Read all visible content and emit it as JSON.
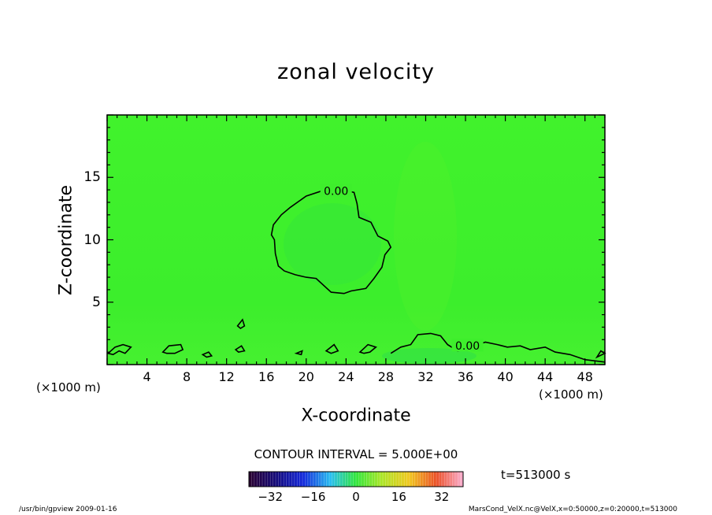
{
  "chart_data": {
    "type": "contour",
    "title": "zonal velocity",
    "xlabel": "X-coordinate",
    "ylabel": "Z-coordinate",
    "x_unit_label": "(×1000 m)",
    "xlim": [
      0,
      50
    ],
    "ylim": [
      0,
      20
    ],
    "x_ticks": [
      4,
      8,
      12,
      16,
      20,
      24,
      28,
      32,
      36,
      40,
      44,
      48
    ],
    "y_ticks": [
      5,
      10,
      15
    ],
    "contour_label": "0.00",
    "contour_interval_text": "CONTOUR INTERVAL = 5.000E+00",
    "colorbar": {
      "min": -40,
      "max": 40,
      "ticks": [
        -32,
        -16,
        0,
        16,
        32
      ],
      "tick_labels": [
        "−32",
        "−16",
        "0",
        "16",
        "32"
      ]
    },
    "time_label": "t=513000 s",
    "field_color": "#3df02a",
    "contours": [
      {
        "name": "zero-contour-bubble",
        "points": [
          [
            18.4,
            12.6
          ],
          [
            20.0,
            13.5
          ],
          [
            21.5,
            13.9
          ],
          [
            23.5,
            14.0
          ],
          [
            24.8,
            13.8
          ],
          [
            25.1,
            12.9
          ],
          [
            25.3,
            11.8
          ],
          [
            26.5,
            11.4
          ],
          [
            27.2,
            10.3
          ],
          [
            28.2,
            9.9
          ],
          [
            28.5,
            9.4
          ],
          [
            27.9,
            8.8
          ],
          [
            27.6,
            7.8
          ],
          [
            26.8,
            6.9
          ],
          [
            26.0,
            6.1
          ],
          [
            24.5,
            5.9
          ],
          [
            23.8,
            5.7
          ],
          [
            22.5,
            5.8
          ],
          [
            21.0,
            6.9
          ],
          [
            20.0,
            7.0
          ],
          [
            18.9,
            7.2
          ],
          [
            17.8,
            7.5
          ],
          [
            17.2,
            7.9
          ],
          [
            16.9,
            8.9
          ],
          [
            16.8,
            10.0
          ],
          [
            16.5,
            10.4
          ],
          [
            16.7,
            11.2
          ],
          [
            17.5,
            12.0
          ]
        ]
      },
      {
        "name": "zero-contour-near-surface",
        "points": [
          [
            28.5,
            0.9
          ],
          [
            29.5,
            1.4
          ],
          [
            30.5,
            1.6
          ],
          [
            31.2,
            2.4
          ],
          [
            32.5,
            2.5
          ],
          [
            33.5,
            2.3
          ],
          [
            34.2,
            1.6
          ],
          [
            35.2,
            1.1
          ],
          [
            36.2,
            1.2
          ],
          [
            37.2,
            1.6
          ],
          [
            38.0,
            1.8
          ],
          [
            39.2,
            1.6
          ],
          [
            40.2,
            1.4
          ],
          [
            41.5,
            1.5
          ],
          [
            42.5,
            1.2
          ],
          [
            44.0,
            1.4
          ],
          [
            45.0,
            1.0
          ],
          [
            46.5,
            0.8
          ],
          [
            48.0,
            0.4
          ],
          [
            50.0,
            0.2
          ]
        ]
      },
      {
        "name": "small-contour-1",
        "points": [
          [
            0.1,
            0.9
          ],
          [
            0.8,
            1.4
          ],
          [
            1.6,
            1.6
          ],
          [
            2.4,
            1.4
          ],
          [
            1.8,
            0.9
          ],
          [
            1.2,
            1.1
          ],
          [
            0.6,
            0.8
          ]
        ]
      },
      {
        "name": "small-contour-2",
        "points": [
          [
            5.6,
            1.0
          ],
          [
            6.2,
            1.5
          ],
          [
            7.4,
            1.6
          ],
          [
            7.6,
            1.2
          ],
          [
            6.8,
            0.9
          ],
          [
            6.0,
            0.9
          ]
        ]
      },
      {
        "name": "small-contour-3",
        "points": [
          [
            9.6,
            0.8
          ],
          [
            10.2,
            1.0
          ],
          [
            10.5,
            0.7
          ],
          [
            10.0,
            0.6
          ]
        ]
      },
      {
        "name": "small-contour-4",
        "points": [
          [
            12.9,
            1.2
          ],
          [
            13.5,
            1.5
          ],
          [
            13.8,
            1.1
          ],
          [
            13.2,
            1.0
          ]
        ]
      },
      {
        "name": "small-contour-5",
        "points": [
          [
            13.1,
            3.1
          ],
          [
            13.6,
            3.6
          ],
          [
            13.8,
            3.1
          ],
          [
            13.4,
            2.9
          ]
        ]
      },
      {
        "name": "small-contour-6",
        "points": [
          [
            19.0,
            0.9
          ],
          [
            19.6,
            1.1
          ],
          [
            19.5,
            0.8
          ]
        ]
      },
      {
        "name": "small-contour-7",
        "points": [
          [
            22.0,
            1.1
          ],
          [
            22.8,
            1.6
          ],
          [
            23.2,
            1.1
          ],
          [
            22.5,
            0.9
          ]
        ]
      },
      {
        "name": "small-contour-8",
        "points": [
          [
            25.4,
            1.0
          ],
          [
            26.2,
            1.6
          ],
          [
            27.0,
            1.4
          ],
          [
            26.4,
            1.0
          ],
          [
            25.8,
            0.9
          ]
        ]
      },
      {
        "name": "small-contour-9",
        "points": [
          [
            49.2,
            0.6
          ],
          [
            49.6,
            1.1
          ],
          [
            50.0,
            0.9
          ]
        ]
      }
    ],
    "contour_label_positions": [
      [
        23.0,
        13.9
      ],
      [
        36.2,
        1.5
      ]
    ]
  },
  "footer": {
    "program": "/usr/bin/gpview   2009-01-16",
    "source": "MarsCond_VelX.nc@VelX,x=0:50000,z=0:20000,t=513000"
  }
}
